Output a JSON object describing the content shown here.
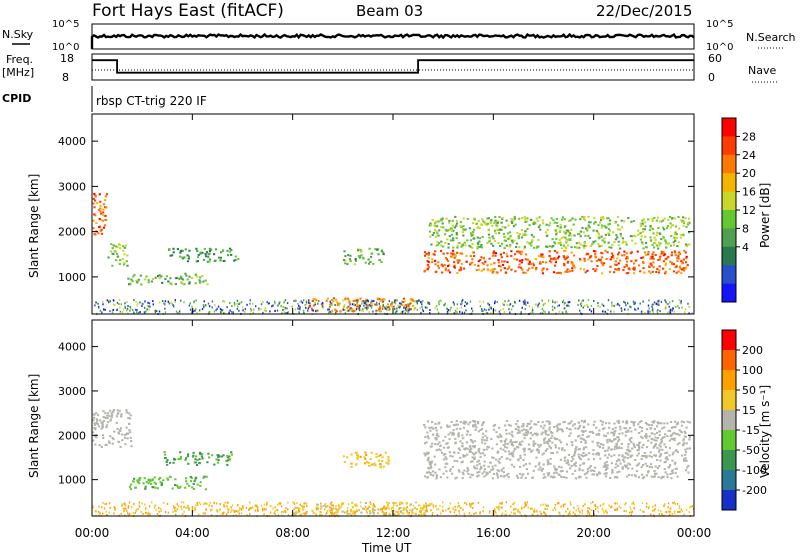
{
  "header": {
    "station": "Fort Hays East (fitACF)",
    "beam": "Beam 03",
    "date": "22/Dec/2015"
  },
  "nsky_panel": {
    "left_label": "N.Sky",
    "right_label": "N.Search",
    "ytick_top": "10^5",
    "ytick_bottom": "10^0",
    "right_ytick_top": "10^5",
    "right_ytick_bottom": "10^0"
  },
  "freq_panel": {
    "left_label": "Freq.",
    "left_unit": "[MHz]",
    "ytick_top": "18",
    "ytick_bottom": "8",
    "right_label": "Nave",
    "right_ytick_top": "60",
    "right_ytick_bottom": "0",
    "freq_segments": [
      {
        "start_h": 0.0,
        "end_h": 1.0,
        "freq_mhz": 16.0
      },
      {
        "start_h": 1.0,
        "end_h": 13.0,
        "freq_mhz": 11.2
      },
      {
        "start_h": 13.0,
        "end_h": 24.0,
        "freq_mhz": 16.0
      }
    ]
  },
  "cpid": {
    "label": "CPID",
    "text": "rbsp CT-trig 220 IF"
  },
  "power_panel": {
    "ylabel": "Slant Range [km]",
    "colorbar_label": "Power [dB]",
    "colorbar_ticks": [
      "28",
      "24",
      "20",
      "16",
      "12",
      "8",
      "4"
    ],
    "colors": [
      "#1414ff",
      "#2850c8",
      "#287850",
      "#50a050",
      "#64c832",
      "#c8d728",
      "#f5b400",
      "#ff7800",
      "#ff3c00",
      "#ff0000"
    ]
  },
  "velocity_panel": {
    "ylabel": "Slant Range [km]",
    "colorbar_label": "Velocity [m s⁻¹]",
    "colorbar_ticks": [
      "200",
      "100",
      "50",
      "15",
      "-15",
      "-50",
      "-100",
      "-200"
    ],
    "colors": [
      "#1432c8",
      "#287896",
      "#3c9650",
      "#64c832",
      "#b4b4aa",
      "#f0c828",
      "#ffa000",
      "#ff6400",
      "#ff0000"
    ],
    "ground_scatter": "#b4b4aa"
  },
  "axes": {
    "xlabel": "Time UT",
    "xticks": [
      "00:00",
      "04:00",
      "08:00",
      "12:00",
      "16:00",
      "20:00",
      "00:00"
    ],
    "yticks": [
      "1000",
      "2000",
      "3000",
      "4000"
    ],
    "x_range_h": [
      0,
      24
    ],
    "y_range_km": [
      180,
      4600
    ]
  },
  "chart_data": [
    {
      "type": "line",
      "title": "",
      "series": [
        {
          "name": "N.Sky",
          "x_h": [
            0,
            24
          ],
          "y": [
            3000,
            3000
          ]
        }
      ]
    },
    {
      "type": "line",
      "series": [
        {
          "name": "Freq.",
          "x_h": [
            0,
            1,
            1,
            13,
            13,
            24
          ],
          "y": [
            16,
            16,
            11.2,
            11.2,
            16,
            16
          ]
        }
      ]
    },
    {
      "type": "heatmap",
      "ylabel": "Slant Range [km]",
      "xlabel": "Time UT",
      "value_label": "Power [dB]",
      "zlim": [
        0,
        30
      ],
      "regions": [
        {
          "t0": 0.0,
          "t1": 0.6,
          "r0": 1950,
          "r1": 2900,
          "db": 24
        },
        {
          "t0": 0.6,
          "t1": 1.4,
          "r0": 1250,
          "r1": 1750,
          "db": 14
        },
        {
          "t0": 1.4,
          "t1": 4.6,
          "r0": 850,
          "r1": 1100,
          "db": 12
        },
        {
          "t0": 3.0,
          "t1": 5.8,
          "r0": 1350,
          "r1": 1650,
          "db": 10
        },
        {
          "t0": 8.6,
          "t1": 13.0,
          "r0": 250,
          "r1": 550,
          "db": 22
        },
        {
          "t0": 10.0,
          "t1": 11.6,
          "r0": 1300,
          "r1": 1650,
          "db": 12
        },
        {
          "t0": 13.2,
          "t1": 23.8,
          "r0": 1100,
          "r1": 1600,
          "db": 24
        },
        {
          "t0": 13.4,
          "t1": 23.8,
          "r0": 1650,
          "r1": 2350,
          "db": 14
        }
      ]
    },
    {
      "type": "heatmap",
      "ylabel": "Slant Range [km]",
      "xlabel": "Time UT",
      "value_label": "Velocity [m s⁻¹]",
      "zlim": [
        -200,
        200
      ],
      "regions": [
        {
          "t0": 0.0,
          "t1": 1.6,
          "r0": 1750,
          "r1": 2600,
          "v": 0,
          "gs": true
        },
        {
          "t0": 1.4,
          "t1": 4.6,
          "r0": 800,
          "r1": 1100,
          "v": 40
        },
        {
          "t0": 2.8,
          "t1": 5.6,
          "r0": 1350,
          "r1": 1650,
          "v": 60
        },
        {
          "t0": 8.0,
          "t1": 13.5,
          "r0": 200,
          "r1": 500,
          "v": -20
        },
        {
          "t0": 10.0,
          "t1": 11.8,
          "r0": 1300,
          "r1": 1650,
          "v": -40
        },
        {
          "t0": 13.2,
          "t1": 23.8,
          "r0": 1050,
          "r1": 2350,
          "v": 0,
          "gs": true
        }
      ]
    }
  ]
}
